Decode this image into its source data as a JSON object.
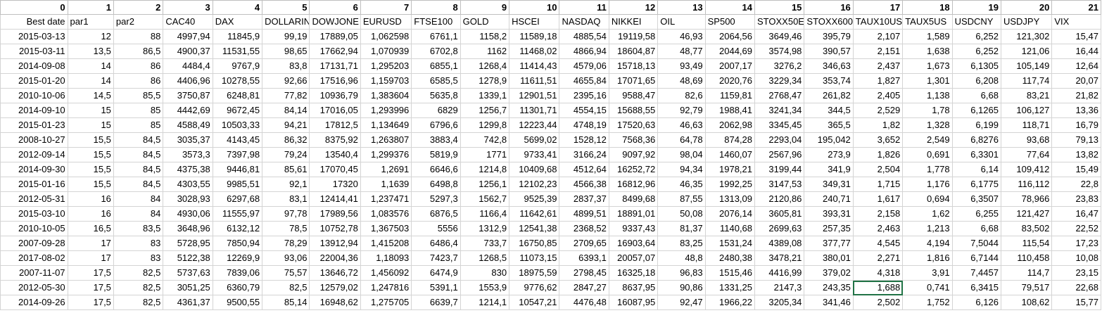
{
  "column_numbers": [
    "0",
    "1",
    "2",
    "3",
    "4",
    "5",
    "6",
    "7",
    "8",
    "9",
    "10",
    "11",
    "12",
    "13",
    "14",
    "15",
    "16",
    "17",
    "18",
    "19",
    "20",
    "21"
  ],
  "header_row": [
    "Best date",
    "par1",
    "par2",
    "CAC40",
    "DAX",
    "DOLLARIN",
    "DOWJONE",
    "EURUSD",
    "FTSE100",
    "GOLD",
    "HSCEI",
    "NASDAQ",
    "NIKKEI",
    "OIL",
    "SP500",
    "STOXX50E",
    "STOXX600",
    "TAUX10US",
    "TAUX5US",
    "USDCNY",
    "USDJPY",
    "VIX"
  ],
  "rows": [
    [
      "2015-03-13",
      "12",
      "88",
      "4997,94",
      "11845,9",
      "99,19",
      "17889,05",
      "1,062598",
      "6761,1",
      "1158,2",
      "11589,18",
      "4885,54",
      "19119,58",
      "46,93",
      "2064,56",
      "3649,46",
      "395,79",
      "2,107",
      "1,589",
      "6,252",
      "121,302",
      "15,47"
    ],
    [
      "2015-03-11",
      "13,5",
      "86,5",
      "4900,37",
      "11531,55",
      "98,65",
      "17662,94",
      "1,070939",
      "6702,8",
      "1162",
      "11468,02",
      "4866,94",
      "18604,87",
      "48,77",
      "2044,69",
      "3574,98",
      "390,57",
      "2,151",
      "1,638",
      "6,252",
      "121,06",
      "16,44"
    ],
    [
      "2014-09-08",
      "14",
      "86",
      "4484,4",
      "9767,9",
      "83,8",
      "17131,71",
      "1,295203",
      "6855,1",
      "1268,4",
      "11414,43",
      "4579,06",
      "15718,13",
      "93,49",
      "2007,17",
      "3276,2",
      "346,63",
      "2,437",
      "1,673",
      "6,1305",
      "105,149",
      "12,64"
    ],
    [
      "2015-01-20",
      "14",
      "86",
      "4406,96",
      "10278,55",
      "92,66",
      "17516,96",
      "1,159703",
      "6585,5",
      "1278,9",
      "11611,51",
      "4655,84",
      "17071,65",
      "48,69",
      "2020,76",
      "3229,34",
      "353,74",
      "1,827",
      "1,301",
      "6,208",
      "117,74",
      "20,07"
    ],
    [
      "2010-10-06",
      "14,5",
      "85,5",
      "3750,87",
      "6248,81",
      "77,82",
      "10936,79",
      "1,383604",
      "5635,8",
      "1339,1",
      "12901,51",
      "2395,16",
      "9588,47",
      "82,6",
      "1159,81",
      "2768,47",
      "261,82",
      "2,405",
      "1,138",
      "6,68",
      "83,21",
      "21,82"
    ],
    [
      "2014-09-10",
      "15",
      "85",
      "4442,69",
      "9672,45",
      "84,14",
      "17016,05",
      "1,293996",
      "6829",
      "1256,7",
      "11301,71",
      "4554,15",
      "15688,55",
      "92,79",
      "1988,41",
      "3241,34",
      "344,5",
      "2,529",
      "1,78",
      "6,1265",
      "106,127",
      "13,36"
    ],
    [
      "2015-01-23",
      "15",
      "85",
      "4588,49",
      "10503,33",
      "94,21",
      "17812,5",
      "1,134649",
      "6796,6",
      "1299,8",
      "12223,44",
      "4748,19",
      "17520,63",
      "46,63",
      "2062,98",
      "3345,45",
      "365,5",
      "1,82",
      "1,328",
      "6,199",
      "118,71",
      "16,79"
    ],
    [
      "2008-10-27",
      "15,5",
      "84,5",
      "3035,37",
      "4143,45",
      "86,32",
      "8375,92",
      "1,263807",
      "3883,4",
      "742,8",
      "5699,02",
      "1528,12",
      "7568,36",
      "64,78",
      "874,28",
      "2293,04",
      "195,042",
      "3,652",
      "2,549",
      "6,8276",
      "93,68",
      "79,13"
    ],
    [
      "2012-09-14",
      "15,5",
      "84,5",
      "3573,3",
      "7397,98",
      "79,24",
      "13540,4",
      "1,299376",
      "5819,9",
      "1771",
      "9733,41",
      "3166,24",
      "9097,92",
      "98,04",
      "1460,07",
      "2567,96",
      "273,9",
      "1,826",
      "0,691",
      "6,3301",
      "77,64",
      "13,82"
    ],
    [
      "2014-09-30",
      "15,5",
      "84,5",
      "4375,38",
      "9446,81",
      "85,61",
      "17070,45",
      "1,2691",
      "6646,6",
      "1214,8",
      "10409,68",
      "4512,64",
      "16252,72",
      "94,34",
      "1978,21",
      "3199,44",
      "341,9",
      "2,504",
      "1,778",
      "6,14",
      "109,412",
      "15,49"
    ],
    [
      "2015-01-16",
      "15,5",
      "84,5",
      "4303,55",
      "9985,51",
      "92,1",
      "17320",
      "1,1639",
      "6498,8",
      "1256,1",
      "12102,23",
      "4566,38",
      "16812,96",
      "46,35",
      "1992,25",
      "3147,53",
      "349,31",
      "1,715",
      "1,176",
      "6,1775",
      "116,112",
      "22,8"
    ],
    [
      "2012-05-31",
      "16",
      "84",
      "3028,93",
      "6297,68",
      "83,1",
      "12414,41",
      "1,237471",
      "5297,3",
      "1562,7",
      "9525,39",
      "2837,37",
      "8499,68",
      "87,55",
      "1313,09",
      "2120,86",
      "240,71",
      "1,617",
      "0,694",
      "6,3507",
      "78,966",
      "23,83"
    ],
    [
      "2015-03-10",
      "16",
      "84",
      "4930,06",
      "11555,97",
      "97,78",
      "17989,56",
      "1,083576",
      "6876,5",
      "1166,4",
      "11642,61",
      "4899,51",
      "18891,01",
      "50,08",
      "2076,14",
      "3605,81",
      "393,31",
      "2,158",
      "1,62",
      "6,255",
      "121,427",
      "16,47"
    ],
    [
      "2010-10-05",
      "16,5",
      "83,5",
      "3648,96",
      "6132,12",
      "78,5",
      "10752,78",
      "1,367503",
      "5556",
      "1312,9",
      "12541,38",
      "2368,52",
      "9337,43",
      "81,37",
      "1140,68",
      "2699,63",
      "257,35",
      "2,463",
      "1,213",
      "6,68",
      "83,502",
      "22,52"
    ],
    [
      "2007-09-28",
      "17",
      "83",
      "5728,95",
      "7850,94",
      "78,29",
      "13912,94",
      "1,415208",
      "6486,4",
      "733,7",
      "16750,85",
      "2709,65",
      "16903,64",
      "83,25",
      "1531,24",
      "4389,08",
      "377,77",
      "4,545",
      "4,194",
      "7,5044",
      "115,54",
      "17,23"
    ],
    [
      "2017-08-02",
      "17",
      "83",
      "5122,38",
      "12269,9",
      "93,06",
      "22004,36",
      "1,18093",
      "7423,7",
      "1268,5",
      "11073,15",
      "6393,1",
      "20057,07",
      "48,8",
      "2480,38",
      "3478,21",
      "380,01",
      "2,271",
      "1,816",
      "6,7144",
      "110,458",
      "10,08"
    ],
    [
      "2007-11-07",
      "17,5",
      "82,5",
      "5737,63",
      "7839,06",
      "75,57",
      "13646,72",
      "1,456092",
      "6474,9",
      "830",
      "18975,59",
      "2798,45",
      "16325,18",
      "96,83",
      "1515,46",
      "4416,99",
      "379,02",
      "4,318",
      "3,91",
      "7,4457",
      "114,7",
      "23,15"
    ],
    [
      "2012-05-30",
      "17,5",
      "82,5",
      "3051,25",
      "6360,79",
      "82,5",
      "12579,02",
      "1,247816",
      "5391,1",
      "1553,9",
      "9776,62",
      "2847,27",
      "8637,95",
      "90,86",
      "1331,25",
      "2147,3",
      "243,35",
      "1,688",
      "0,741",
      "6,3415",
      "79,517",
      "22,68"
    ],
    [
      "2014-09-26",
      "17,5",
      "82,5",
      "4361,37",
      "9500,55",
      "85,14",
      "16948,62",
      "1,275705",
      "6639,7",
      "1214,1",
      "10547,21",
      "4476,48",
      "16087,95",
      "92,47",
      "1966,22",
      "3205,34",
      "341,46",
      "2,502",
      "1,752",
      "6,126",
      "108,62",
      "15,77"
    ]
  ],
  "selected_cell": {
    "row": 17,
    "col": 17
  },
  "colors": {
    "gridline": "#d4d4d4",
    "selection": "#217346"
  }
}
